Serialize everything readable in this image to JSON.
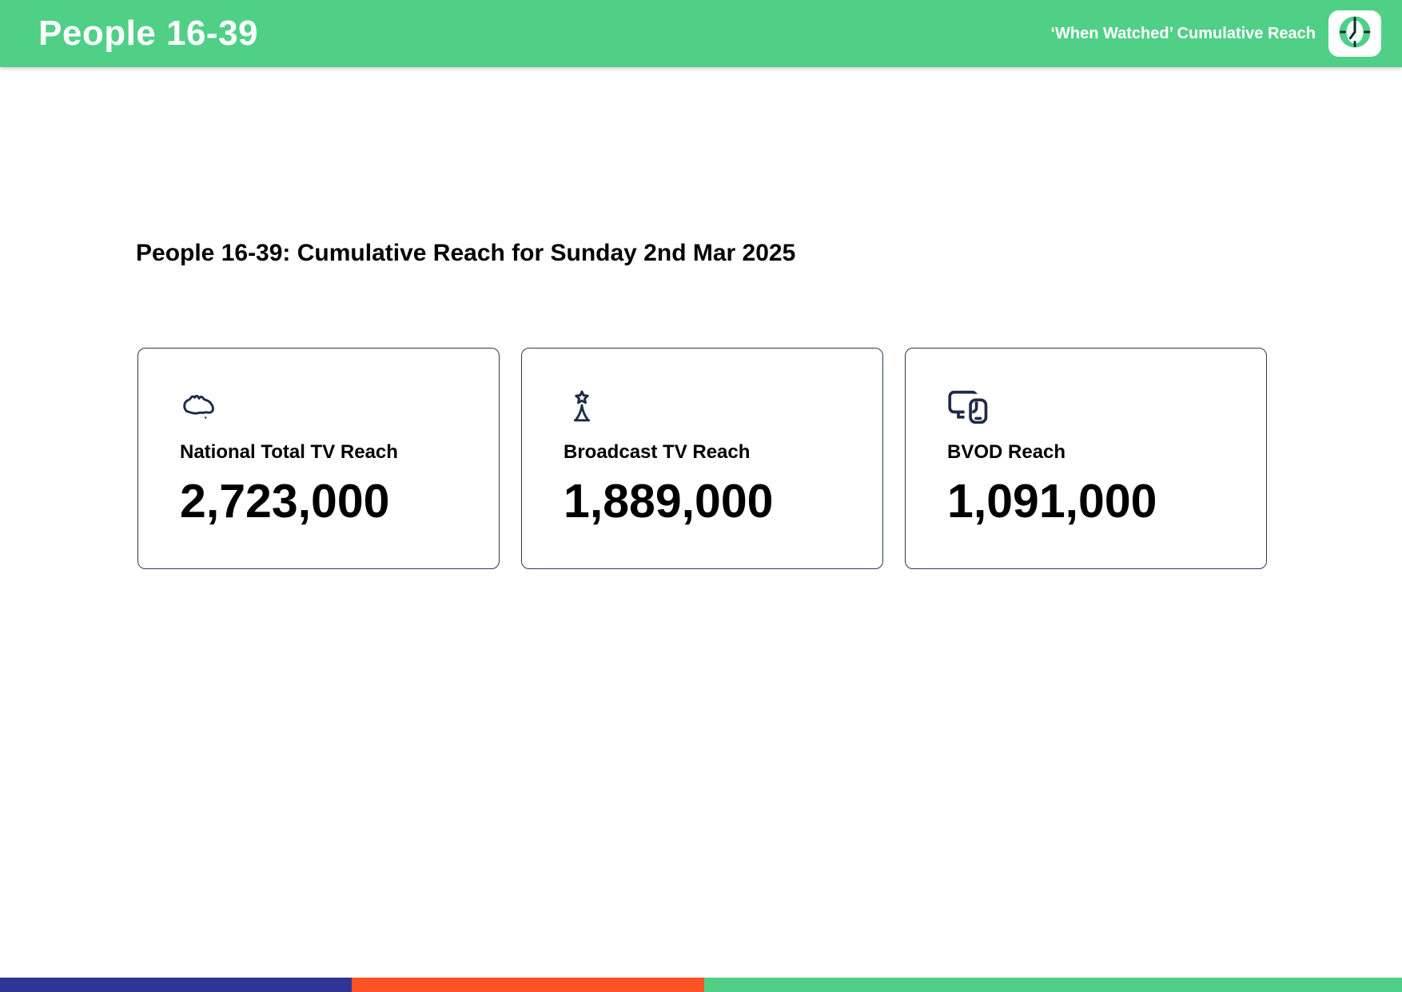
{
  "header": {
    "title": "People 16-39",
    "right_label": "‘When Watched’ Cumulative Reach"
  },
  "main": {
    "heading": "People 16-39: Cumulative Reach for Sunday 2nd Mar 2025",
    "cards": [
      {
        "icon": "australia-map-icon",
        "label": "National Total TV Reach",
        "value": "2,723,000"
      },
      {
        "icon": "broadcast-tower-icon",
        "label": "Broadcast TV Reach",
        "value": "1,889,000"
      },
      {
        "icon": "devices-icon",
        "label": "BVOD Reach",
        "value": "1,091,000"
      }
    ]
  },
  "footer": {
    "segments": [
      {
        "name": "navy",
        "color": "#2e3594",
        "width_pct": 25.06
      },
      {
        "name": "orange",
        "color": "#fb5226",
        "width_pct": 25.14
      },
      {
        "name": "green",
        "color": "#50d087",
        "width_pct": 49.8
      }
    ]
  },
  "colors": {
    "header_green": "#50d087",
    "icon_navy": "#1e2a47",
    "card_border": "#2b3a52"
  }
}
